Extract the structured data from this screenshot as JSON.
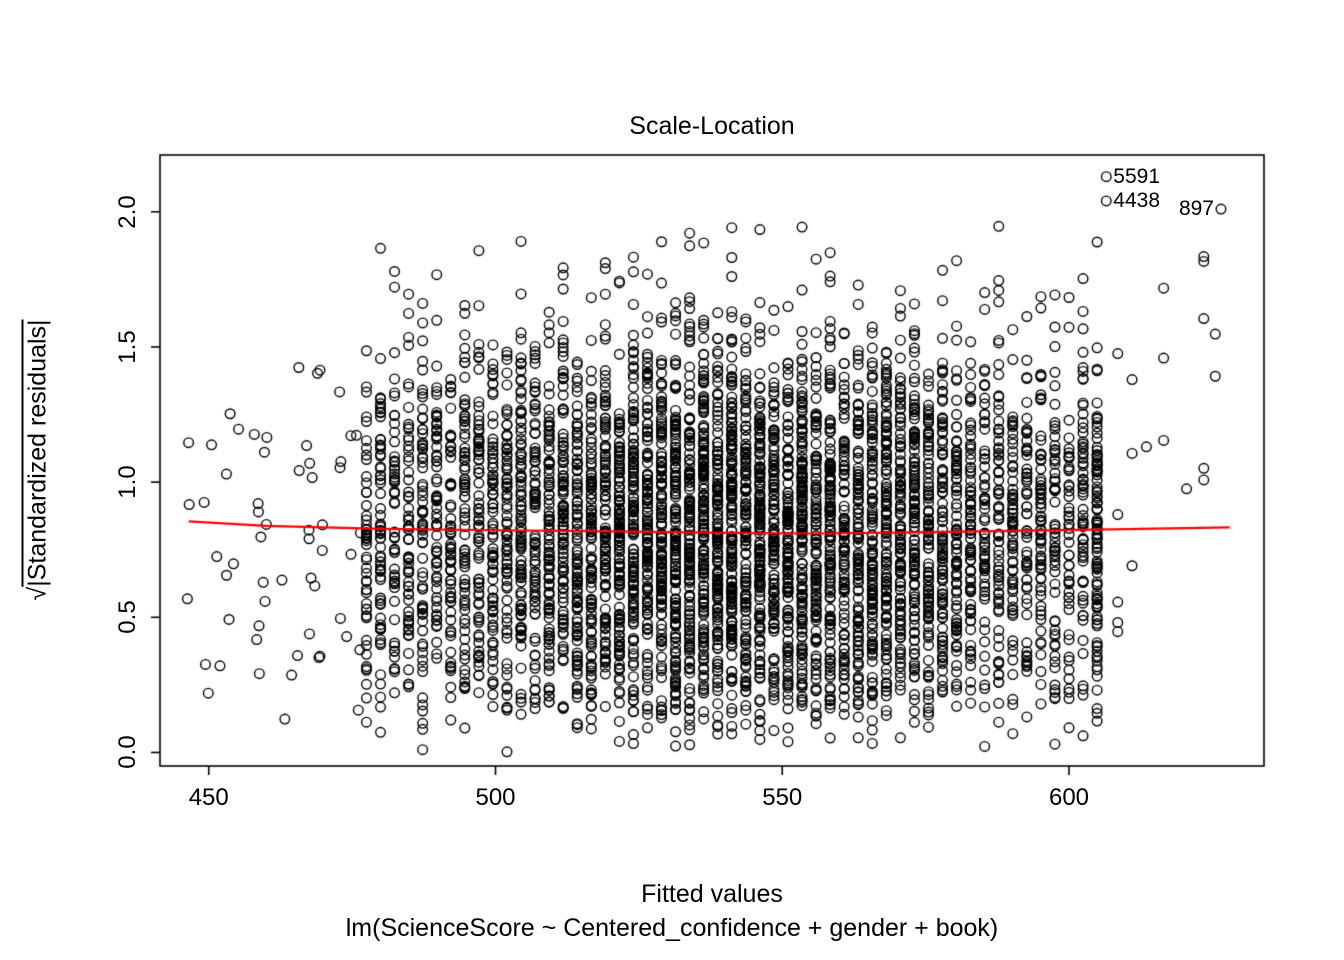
{
  "figure": {
    "title": "Scale-Location",
    "xlabel": "Fitted values",
    "caption": "lm(ScienceScore ~ Centered_confidence + gender + book)",
    "ylabel_radical": "√",
    "ylabel_inner": "|Standardized residuals|"
  },
  "chart_data": {
    "type": "scatter",
    "title": "Scale-Location",
    "xlabel": "Fitted values",
    "sub_caption": "lm(ScienceScore ~ Centered_confidence + gender + book)",
    "ylabel": "sqrt(|Standardized residuals|)",
    "x_ticks": [
      450,
      500,
      550,
      600
    ],
    "y_ticks": [
      0.0,
      0.5,
      1.0,
      1.5,
      2.0
    ],
    "xlim": [
      441.5,
      634
    ],
    "ylim": [
      -0.05,
      2.21
    ],
    "grid": false,
    "legend": null,
    "point_style": {
      "shape": "open-circle",
      "color": "#000000",
      "radius_px": 4.8
    },
    "smoother": {
      "name": "loess-fit",
      "color": "#FF0000",
      "x": [
        446.5,
        460,
        480,
        500,
        520,
        540,
        555,
        570,
        590,
        610,
        628
      ],
      "y": [
        0.855,
        0.838,
        0.827,
        0.822,
        0.818,
        0.812,
        0.81,
        0.813,
        0.82,
        0.826,
        0.833
      ]
    },
    "labeled_points": [
      {
        "label": "5591",
        "x": 606.5,
        "y": 2.13,
        "label_side": "right"
      },
      {
        "label": "4438",
        "x": 606.5,
        "y": 2.04,
        "label_side": "right"
      },
      {
        "label": "897",
        "x": 626.5,
        "y": 2.01,
        "label_side": "left"
      }
    ],
    "scatter": {
      "seed": 20240612,
      "core": {
        "n": 5300,
        "x_start": 477.5,
        "x_end": 605,
        "step": 2.45,
        "mu": 542,
        "sigma": 34,
        "base": 0.25,
        "end_boost": 1.7,
        "y_cap": 1.99,
        "tail_prob": 0.002,
        "tail_min": 1.65,
        "tail_span": 0.33
      },
      "left_fringe": {
        "n": 58,
        "x_min": 446,
        "x_max": 477,
        "y_cap": 1.62
      },
      "right_fringe": {
        "n": 20,
        "columns": [
          608.5,
          611,
          613.5,
          616.5,
          620.5,
          623.5,
          625.5
        ],
        "y_min": 0.42,
        "y_span": 1.5
      },
      "description": "≈5400 open-circle points; y = sqrt(|standardized residual|), median ≈ 0.82, bulk 0–1.6; fitted values form discrete vertical bands, dense between 478 and 605, sparse fringes at 446–477 and 608–627"
    }
  }
}
